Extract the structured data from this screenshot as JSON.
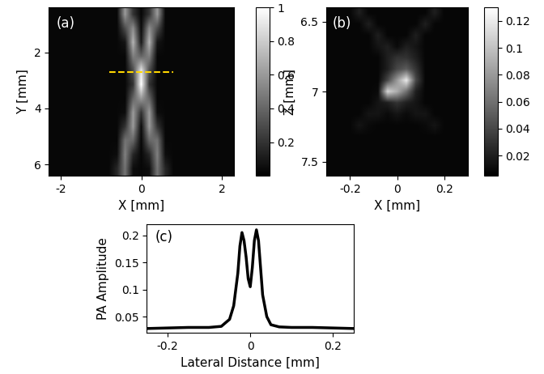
{
  "chart_data": [
    {
      "type": "heatmap",
      "label": "(a)",
      "x_label": "X [mm]",
      "y_label": "Y [mm]",
      "xlim": [
        -2.3,
        2.3
      ],
      "ylim": [
        6.4,
        0.4
      ],
      "xticks": [
        -2,
        0,
        2
      ],
      "yticks": [
        2,
        4,
        6
      ],
      "color_range": [
        0,
        1
      ],
      "color_ticks": [
        0.2,
        0.4,
        0.6,
        0.8,
        1
      ],
      "cut_line": {
        "y": 2.7,
        "x": [
          -0.8,
          0.8
        ],
        "color": "#ffd700"
      },
      "cells": [
        [
          0.03,
          0.03,
          0.03,
          0.03,
          0.03,
          0.03,
          0.03,
          0.03,
          0.03,
          0.6,
          0.2,
          0.03,
          0.2,
          0.6,
          0.03,
          0.03,
          0.03,
          0.03,
          0.03,
          0.03,
          0.03,
          0.03,
          0.03
        ],
        [
          0.03,
          0.03,
          0.03,
          0.03,
          0.03,
          0.03,
          0.03,
          0.03,
          0.03,
          0.3,
          0.55,
          0.05,
          0.55,
          0.3,
          0.03,
          0.03,
          0.03,
          0.03,
          0.03,
          0.03,
          0.03,
          0.03,
          0.03
        ],
        [
          0.03,
          0.03,
          0.03,
          0.03,
          0.03,
          0.03,
          0.03,
          0.03,
          0.03,
          0.08,
          0.7,
          0.1,
          0.7,
          0.08,
          0.03,
          0.03,
          0.03,
          0.03,
          0.03,
          0.03,
          0.03,
          0.03,
          0.03
        ],
        [
          0.03,
          0.03,
          0.03,
          0.03,
          0.03,
          0.03,
          0.03,
          0.03,
          0.03,
          0.03,
          0.5,
          0.4,
          0.5,
          0.03,
          0.03,
          0.03,
          0.03,
          0.03,
          0.03,
          0.03,
          0.03,
          0.03,
          0.03
        ],
        [
          0.03,
          0.03,
          0.03,
          0.03,
          0.03,
          0.03,
          0.03,
          0.03,
          0.03,
          0.03,
          0.3,
          0.9,
          0.3,
          0.03,
          0.03,
          0.03,
          0.03,
          0.03,
          0.03,
          0.03,
          0.03,
          0.03,
          0.03
        ],
        [
          0.03,
          0.03,
          0.03,
          0.03,
          0.03,
          0.03,
          0.03,
          0.03,
          0.03,
          0.03,
          0.2,
          1.0,
          0.2,
          0.03,
          0.03,
          0.03,
          0.03,
          0.03,
          0.03,
          0.03,
          0.03,
          0.03,
          0.03
        ],
        [
          0.03,
          0.03,
          0.03,
          0.03,
          0.03,
          0.03,
          0.03,
          0.03,
          0.03,
          0.03,
          0.4,
          0.6,
          0.4,
          0.03,
          0.03,
          0.03,
          0.03,
          0.03,
          0.03,
          0.03,
          0.03,
          0.03,
          0.03
        ],
        [
          0.03,
          0.03,
          0.03,
          0.03,
          0.03,
          0.03,
          0.03,
          0.03,
          0.03,
          0.05,
          0.6,
          0.2,
          0.6,
          0.05,
          0.03,
          0.03,
          0.03,
          0.03,
          0.03,
          0.03,
          0.03,
          0.03,
          0.03
        ],
        [
          0.03,
          0.03,
          0.03,
          0.03,
          0.03,
          0.03,
          0.03,
          0.03,
          0.03,
          0.2,
          0.6,
          0.05,
          0.6,
          0.2,
          0.03,
          0.03,
          0.03,
          0.03,
          0.03,
          0.03,
          0.03,
          0.03,
          0.03
        ],
        [
          0.03,
          0.03,
          0.03,
          0.03,
          0.03,
          0.03,
          0.03,
          0.03,
          0.03,
          0.45,
          0.4,
          0.03,
          0.4,
          0.45,
          0.03,
          0.03,
          0.03,
          0.03,
          0.03,
          0.03,
          0.03,
          0.03,
          0.03
        ],
        [
          0.03,
          0.03,
          0.03,
          0.03,
          0.03,
          0.03,
          0.03,
          0.03,
          0.05,
          0.5,
          0.15,
          0.03,
          0.15,
          0.5,
          0.05,
          0.03,
          0.03,
          0.03,
          0.03,
          0.03,
          0.03,
          0.03,
          0.03
        ],
        [
          0.03,
          0.03,
          0.03,
          0.03,
          0.03,
          0.03,
          0.03,
          0.03,
          0.15,
          0.45,
          0.05,
          0.03,
          0.05,
          0.45,
          0.15,
          0.03,
          0.03,
          0.03,
          0.03,
          0.03,
          0.03,
          0.03,
          0.03
        ]
      ]
    },
    {
      "type": "heatmap",
      "label": "(b)",
      "x_label": "X [mm]",
      "y_label": "Z [mm]",
      "xlim": [
        -0.3,
        0.3
      ],
      "ylim": [
        7.6,
        6.4
      ],
      "xticks": [
        -0.2,
        0,
        0.2
      ],
      "yticks": [
        6.5,
        7,
        7.5
      ],
      "color_range": [
        0.005,
        0.13
      ],
      "color_ticks": [
        0.02,
        0.04,
        0.06,
        0.08,
        0.1,
        0.12
      ],
      "cells": [
        [
          0.008,
          0.008,
          0.008,
          0.02,
          0.008,
          0.008,
          0.008,
          0.008,
          0.008,
          0.008,
          0.008,
          0.02,
          0.008,
          0.008,
          0.008
        ],
        [
          0.008,
          0.008,
          0.008,
          0.008,
          0.02,
          0.008,
          0.008,
          0.008,
          0.008,
          0.008,
          0.02,
          0.008,
          0.008,
          0.008,
          0.008
        ],
        [
          0.008,
          0.008,
          0.008,
          0.008,
          0.008,
          0.02,
          0.008,
          0.008,
          0.008,
          0.02,
          0.008,
          0.008,
          0.008,
          0.008,
          0.008
        ],
        [
          0.008,
          0.008,
          0.008,
          0.008,
          0.008,
          0.015,
          0.02,
          0.01,
          0.02,
          0.015,
          0.008,
          0.008,
          0.008,
          0.008,
          0.008
        ],
        [
          0.008,
          0.008,
          0.008,
          0.008,
          0.008,
          0.008,
          0.02,
          0.03,
          0.03,
          0.02,
          0.008,
          0.008,
          0.008,
          0.008,
          0.008
        ],
        [
          0.008,
          0.008,
          0.008,
          0.008,
          0.008,
          0.008,
          0.02,
          0.04,
          0.05,
          0.03,
          0.008,
          0.008,
          0.008,
          0.008,
          0.008
        ],
        [
          0.008,
          0.008,
          0.008,
          0.008,
          0.008,
          0.008,
          0.04,
          0.08,
          0.12,
          0.04,
          0.008,
          0.008,
          0.008,
          0.008,
          0.008
        ],
        [
          0.008,
          0.008,
          0.008,
          0.008,
          0.008,
          0.01,
          0.11,
          0.09,
          0.06,
          0.02,
          0.008,
          0.008,
          0.008,
          0.008,
          0.008
        ],
        [
          0.008,
          0.008,
          0.008,
          0.008,
          0.008,
          0.015,
          0.02,
          0.03,
          0.02,
          0.015,
          0.008,
          0.008,
          0.008,
          0.008,
          0.008
        ],
        [
          0.008,
          0.008,
          0.008,
          0.008,
          0.015,
          0.015,
          0.01,
          0.015,
          0.01,
          0.015,
          0.015,
          0.008,
          0.008,
          0.008,
          0.008
        ],
        [
          0.008,
          0.008,
          0.008,
          0.015,
          0.01,
          0.008,
          0.008,
          0.008,
          0.008,
          0.008,
          0.01,
          0.015,
          0.008,
          0.008,
          0.008
        ],
        [
          0.008,
          0.008,
          0.008,
          0.008,
          0.008,
          0.008,
          0.008,
          0.008,
          0.008,
          0.008,
          0.008,
          0.008,
          0.008,
          0.008,
          0.008
        ],
        [
          0.008,
          0.008,
          0.008,
          0.008,
          0.008,
          0.008,
          0.008,
          0.008,
          0.008,
          0.008,
          0.008,
          0.008,
          0.008,
          0.008,
          0.008
        ],
        [
          0.008,
          0.008,
          0.008,
          0.008,
          0.008,
          0.008,
          0.008,
          0.008,
          0.008,
          0.008,
          0.008,
          0.008,
          0.008,
          0.008,
          0.008
        ],
        [
          0.008,
          0.008,
          0.008,
          0.008,
          0.008,
          0.008,
          0.008,
          0.008,
          0.008,
          0.008,
          0.008,
          0.008,
          0.008,
          0.008,
          0.008
        ]
      ]
    },
    {
      "type": "line",
      "label": "(c)",
      "x_label": "Lateral Distance [mm]",
      "y_label": "PA Amplitude",
      "xlim": [
        -0.25,
        0.25
      ],
      "ylim": [
        0.02,
        0.22
      ],
      "xticks": [
        -0.2,
        0,
        0.2
      ],
      "yticks": [
        0.05,
        0.1,
        0.15,
        0.2
      ],
      "color": "#000000",
      "x": [
        -0.25,
        -0.2,
        -0.15,
        -0.1,
        -0.07,
        -0.05,
        -0.04,
        -0.03,
        -0.025,
        -0.02,
        -0.015,
        -0.01,
        -0.005,
        0,
        0.005,
        0.01,
        0.015,
        0.02,
        0.025,
        0.03,
        0.04,
        0.05,
        0.07,
        0.1,
        0.15,
        0.2,
        0.25
      ],
      "values": [
        0.028,
        0.029,
        0.03,
        0.03,
        0.032,
        0.045,
        0.07,
        0.13,
        0.18,
        0.205,
        0.19,
        0.16,
        0.12,
        0.105,
        0.14,
        0.19,
        0.21,
        0.19,
        0.14,
        0.09,
        0.05,
        0.035,
        0.031,
        0.03,
        0.03,
        0.029,
        0.028
      ]
    }
  ]
}
